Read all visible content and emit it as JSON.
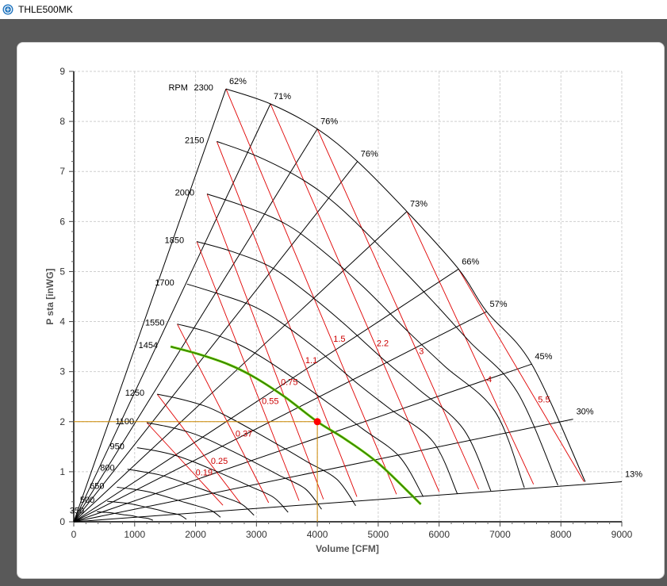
{
  "window": {
    "title": "THLE500MK"
  },
  "chart_data": {
    "type": "line",
    "title": "",
    "xlabel": "Volume [CFM]",
    "ylabel": "P sta [inWG]",
    "xlim": [
      0,
      9000
    ],
    "ylim": [
      0,
      9
    ],
    "x_ticks": [
      "0",
      "1000",
      "2000",
      "3000",
      "4000",
      "5000",
      "6000",
      "7000",
      "8000",
      "9000"
    ],
    "y_ticks": [
      "0",
      "1",
      "2",
      "3",
      "4",
      "5",
      "6",
      "7",
      "8",
      "9"
    ],
    "grid": true,
    "rpm_prefix_label": "RPM",
    "rpm_curves": [
      {
        "label": "2300",
        "x": [
          2500,
          3230,
          4000,
          4660,
          5470,
          6320,
          6780,
          7520,
          8400
        ],
        "y": [
          8.65,
          8.35,
          7.85,
          7.2,
          6.2,
          5.05,
          4.2,
          3.15,
          0.8
        ]
      },
      {
        "label": "2150",
        "x": [
          2350,
          3020,
          3740,
          4350,
          5110,
          5900,
          6500,
          7280,
          7950
        ],
        "y": [
          7.6,
          7.3,
          6.85,
          6.3,
          5.4,
          4.4,
          3.6,
          2.6,
          0.73
        ]
      },
      {
        "label": "2000",
        "x": [
          2190,
          2810,
          3480,
          4050,
          4750,
          5490,
          6100,
          6920,
          7400
        ],
        "y": [
          6.55,
          6.3,
          5.95,
          5.45,
          4.7,
          3.8,
          3.1,
          2.2,
          0.68
        ]
      },
      {
        "label": "1850",
        "x": [
          2020,
          2600,
          3220,
          3750,
          4400,
          5080,
          5660,
          6400,
          6850
        ],
        "y": [
          5.6,
          5.4,
          5.1,
          4.65,
          4.0,
          3.25,
          2.65,
          1.85,
          0.62
        ]
      },
      {
        "label": "1700",
        "x": [
          1860,
          2390,
          2960,
          3440,
          4040,
          4670,
          5200,
          5900,
          6300
        ],
        "y": [
          4.75,
          4.55,
          4.3,
          3.95,
          3.4,
          2.75,
          2.25,
          1.6,
          0.56
        ]
      },
      {
        "label": "1550",
        "x": [
          1700,
          2180,
          2700,
          3140,
          3690,
          4260,
          4750,
          5350,
          5740
        ],
        "y": [
          3.95,
          3.8,
          3.55,
          3.25,
          2.8,
          2.3,
          1.85,
          1.3,
          0.5
        ]
      },
      {
        "label": "1454",
        "x": [
          1590,
          2050,
          2530,
          2950,
          3460,
          4000,
          4460,
          5020,
          5700
        ],
        "y": [
          3.5,
          3.35,
          3.15,
          2.9,
          2.5,
          2.0,
          1.65,
          1.15,
          0.35
        ],
        "highlight": true
      },
      {
        "label": "1250",
        "x": [
          1370,
          1760,
          2180,
          2530,
          2980,
          3440,
          3830,
          4320,
          4630
        ],
        "y": [
          2.55,
          2.45,
          2.3,
          2.1,
          1.8,
          1.48,
          1.2,
          0.85,
          0.32
        ]
      },
      {
        "label": "1100",
        "x": [
          1200,
          1550,
          1920,
          2230,
          2620,
          3030,
          3370,
          3800,
          4070
        ],
        "y": [
          1.98,
          1.9,
          1.78,
          1.63,
          1.4,
          1.15,
          0.93,
          0.66,
          0.25
        ]
      },
      {
        "label": "950",
        "x": [
          1040,
          1340,
          1660,
          1920,
          2260,
          2620,
          2910,
          3280,
          3520
        ],
        "y": [
          1.48,
          1.42,
          1.33,
          1.22,
          1.05,
          0.86,
          0.7,
          0.49,
          0.19
        ]
      },
      {
        "label": "800",
        "x": [
          880,
          1130,
          1400,
          1620,
          1900,
          2200,
          2450,
          2760,
          2960
        ],
        "y": [
          1.05,
          1.0,
          0.94,
          0.86,
          0.74,
          0.61,
          0.5,
          0.35,
          0.13
        ]
      },
      {
        "label": "650",
        "x": [
          710,
          920,
          1140,
          1320,
          1550,
          1790,
          1990,
          2250,
          2410
        ],
        "y": [
          0.69,
          0.66,
          0.62,
          0.57,
          0.49,
          0.4,
          0.33,
          0.23,
          0.09
        ]
      },
      {
        "label": "500",
        "x": [
          550,
          710,
          870,
          1010,
          1190,
          1380,
          1530,
          1730,
          1850
        ],
        "y": [
          0.41,
          0.39,
          0.37,
          0.34,
          0.29,
          0.24,
          0.19,
          0.14,
          0.05
        ]
      },
      {
        "label": "350",
        "x": [
          380,
          490,
          610,
          710,
          830,
          960,
          1070,
          1210,
          1300
        ],
        "y": [
          0.2,
          0.19,
          0.18,
          0.16,
          0.14,
          0.12,
          0.09,
          0.07,
          0.03
        ]
      }
    ],
    "efficiency_lines": [
      {
        "label": "62%",
        "x": [
          0,
          2500
        ],
        "y": [
          0,
          8.65
        ]
      },
      {
        "label": "71%",
        "x": [
          0,
          3230
        ],
        "y": [
          0,
          8.35
        ]
      },
      {
        "label": "76%",
        "x": [
          0,
          4000
        ],
        "y": [
          0,
          7.85
        ]
      },
      {
        "label": "76%",
        "x": [
          0,
          4660
        ],
        "y": [
          0,
          7.2
        ]
      },
      {
        "label": "73%",
        "x": [
          0,
          5470
        ],
        "y": [
          0,
          6.2
        ]
      },
      {
        "label": "66%",
        "x": [
          0,
          6320
        ],
        "y": [
          0,
          5.05
        ]
      },
      {
        "label": "57%",
        "x": [
          0,
          6780
        ],
        "y": [
          0,
          4.2
        ]
      },
      {
        "label": "45%",
        "x": [
          0,
          7520
        ],
        "y": [
          0,
          3.15
        ]
      },
      {
        "label": "30%",
        "x": [
          0,
          8200
        ],
        "y": [
          0,
          2.05
        ]
      },
      {
        "label": "13%",
        "x": [
          0,
          9000
        ],
        "y": [
          0,
          0.8
        ]
      }
    ],
    "power_lines": [
      {
        "label": "0.19",
        "x": [
          1200,
          2450
        ],
        "y": [
          1.98,
          0.33
        ]
      },
      {
        "label": "0.25",
        "x": [
          1370,
          2750
        ],
        "y": [
          2.55,
          0.35
        ]
      },
      {
        "label": "0.37",
        "x": [
          1700,
          3200
        ],
        "y": [
          3.95,
          0.38
        ]
      },
      {
        "label": "0.55",
        "x": [
          2020,
          3700
        ],
        "y": [
          5.6,
          0.42
        ]
      },
      {
        "label": "0.75",
        "x": [
          2190,
          4100
        ],
        "y": [
          6.55,
          0.45
        ]
      },
      {
        "label": "1.1",
        "x": [
          2350,
          4650
        ],
        "y": [
          7.6,
          0.5
        ]
      },
      {
        "label": "1.5",
        "x": [
          2500,
          5300
        ],
        "y": [
          8.65,
          0.55
        ]
      },
      {
        "label": "2.2",
        "x": [
          3230,
          6000
        ],
        "y": [
          8.35,
          0.6
        ]
      },
      {
        "label": "3",
        "x": [
          4000,
          6650
        ],
        "y": [
          7.85,
          0.65
        ]
      },
      {
        "label": "4",
        "x": [
          5470,
          7550
        ],
        "y": [
          6.2,
          0.75
        ]
      },
      {
        "label": "5.5",
        "x": [
          6320,
          8380
        ],
        "y": [
          5.05,
          0.8
        ]
      }
    ],
    "operating_point": {
      "x": 4000,
      "y": 2.0
    },
    "operating_point_color": "#ff0000",
    "guide_line_color": "#cc8800",
    "highlight_color": "#66cc00",
    "rpm_line_color": "#000000",
    "power_line_color": "#e00000"
  }
}
